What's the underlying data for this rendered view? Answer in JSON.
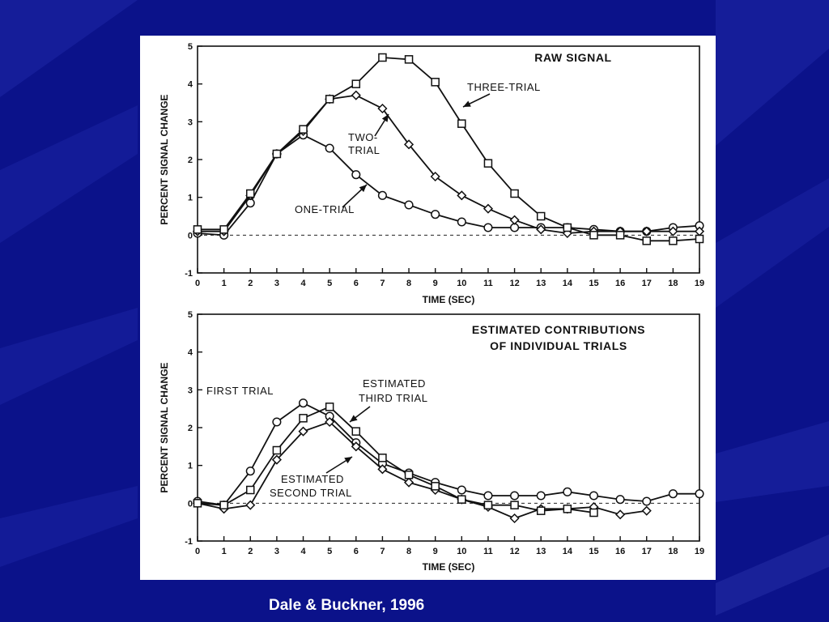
{
  "caption": "Dale & Buckner, 1996",
  "colors": {
    "background": "#0b128a",
    "figure": "#ffffff",
    "ink": "#111111",
    "caption": "#ffffff"
  },
  "chart_data": [
    {
      "type": "line",
      "title": "RAW SIGNAL",
      "xlabel": "TIME (SEC)",
      "ylabel": "PERCENT SIGNAL CHANGE",
      "xlim": [
        0,
        19
      ],
      "ylim": [
        -1,
        5
      ],
      "xticks": [
        0,
        1,
        2,
        3,
        4,
        5,
        6,
        7,
        8,
        9,
        10,
        11,
        12,
        13,
        14,
        15,
        16,
        17,
        18,
        19
      ],
      "yticks": [
        -1,
        0,
        1,
        2,
        3,
        4,
        5
      ],
      "grid": false,
      "zero_line": "dashed",
      "series": [
        {
          "name": "ONE-TRIAL",
          "marker": "circle",
          "x": [
            0,
            1,
            2,
            3,
            4,
            5,
            6,
            7,
            8,
            9,
            10,
            11,
            12,
            13,
            14,
            15,
            16,
            17,
            18,
            19
          ],
          "values": [
            0.05,
            0.0,
            0.85,
            2.15,
            2.65,
            2.3,
            1.6,
            1.05,
            0.8,
            0.55,
            0.35,
            0.2,
            0.2,
            0.2,
            0.2,
            0.15,
            0.1,
            0.1,
            0.2,
            0.25
          ]
        },
        {
          "name": "TWO-TRIAL",
          "marker": "diamond",
          "x": [
            0,
            1,
            2,
            3,
            4,
            5,
            6,
            7,
            8,
            9,
            10,
            11,
            12,
            13,
            14,
            15,
            16,
            17,
            18,
            19
          ],
          "values": [
            0.1,
            0.1,
            1.05,
            2.15,
            2.75,
            3.6,
            3.7,
            3.35,
            2.4,
            1.55,
            1.05,
            0.7,
            0.4,
            0.15,
            0.05,
            0.1,
            0.1,
            0.1,
            0.1,
            0.1
          ]
        },
        {
          "name": "THREE-TRIAL",
          "marker": "square",
          "x": [
            0,
            1,
            2,
            3,
            4,
            5,
            6,
            7,
            8,
            9,
            10,
            11,
            12,
            13,
            14,
            15,
            16,
            17,
            18,
            19
          ],
          "values": [
            0.15,
            0.15,
            1.1,
            2.15,
            2.8,
            3.6,
            4.0,
            4.7,
            4.65,
            4.05,
            2.95,
            1.9,
            1.1,
            0.5,
            0.2,
            0.0,
            0.0,
            -0.15,
            -0.15,
            -0.1
          ]
        }
      ],
      "annotations": [
        {
          "text_lines": [
            "THREE-TRIAL"
          ],
          "target": "THREE-TRIAL"
        },
        {
          "text_lines": [
            "TWO-",
            "TRIAL"
          ],
          "target": "TWO-TRIAL"
        },
        {
          "text_lines": [
            "ONE-TRIAL"
          ],
          "target": "ONE-TRIAL"
        }
      ]
    },
    {
      "type": "line",
      "title_lines": [
        "ESTIMATED  CONTRIBUTIONS",
        "OF  INDIVIDUAL  TRIALS"
      ],
      "xlabel": "TIME (SEC)",
      "ylabel": "PERCENT SIGNAL CHANGE",
      "xlim": [
        0,
        19
      ],
      "ylim": [
        -1,
        5
      ],
      "xticks": [
        0,
        1,
        2,
        3,
        4,
        5,
        6,
        7,
        8,
        9,
        10,
        11,
        12,
        13,
        14,
        15,
        16,
        17,
        18,
        19
      ],
      "yticks": [
        -1,
        0,
        1,
        2,
        3,
        4,
        5
      ],
      "grid": false,
      "zero_line": "dashed",
      "series": [
        {
          "name": "FIRST TRIAL",
          "marker": "circle",
          "x": [
            0,
            1,
            2,
            3,
            4,
            5,
            6,
            7,
            8,
            9,
            10,
            11,
            12,
            13,
            14,
            15,
            16,
            17,
            18,
            19
          ],
          "values": [
            0.05,
            -0.05,
            0.85,
            2.15,
            2.65,
            2.3,
            1.6,
            1.05,
            0.8,
            0.55,
            0.35,
            0.2,
            0.2,
            0.2,
            0.3,
            0.2,
            0.1,
            0.05,
            0.25,
            0.25
          ]
        },
        {
          "name": "ESTIMATED SECOND TRIAL",
          "marker": "diamond",
          "x": [
            0,
            1,
            2,
            3,
            4,
            5,
            6,
            7,
            8,
            9,
            10,
            11,
            12,
            13,
            14,
            15,
            16,
            17
          ],
          "values": [
            0.0,
            -0.15,
            -0.05,
            1.15,
            1.9,
            2.15,
            1.5,
            0.9,
            0.55,
            0.35,
            0.1,
            -0.1,
            -0.4,
            -0.15,
            -0.15,
            -0.1,
            -0.3,
            -0.2
          ]
        },
        {
          "name": "ESTIMATED THIRD TRIAL",
          "marker": "square",
          "x": [
            0,
            1,
            2,
            3,
            4,
            5,
            6,
            7,
            8,
            9,
            10,
            11,
            12,
            13,
            14,
            15
          ],
          "values": [
            0.0,
            -0.05,
            0.35,
            1.4,
            2.25,
            2.55,
            1.9,
            1.2,
            0.75,
            0.45,
            0.1,
            -0.05,
            -0.05,
            -0.2,
            -0.15,
            -0.25
          ]
        }
      ],
      "annotations": [
        {
          "text_lines": [
            "FIRST   TRIAL"
          ],
          "target": "FIRST TRIAL"
        },
        {
          "text_lines": [
            "ESTIMATED",
            "THIRD  TRIAL"
          ],
          "target": "ESTIMATED THIRD TRIAL"
        },
        {
          "text_lines": [
            "ESTIMATED",
            "SECOND  TRIAL"
          ],
          "target": "ESTIMATED SECOND TRIAL"
        }
      ]
    }
  ]
}
